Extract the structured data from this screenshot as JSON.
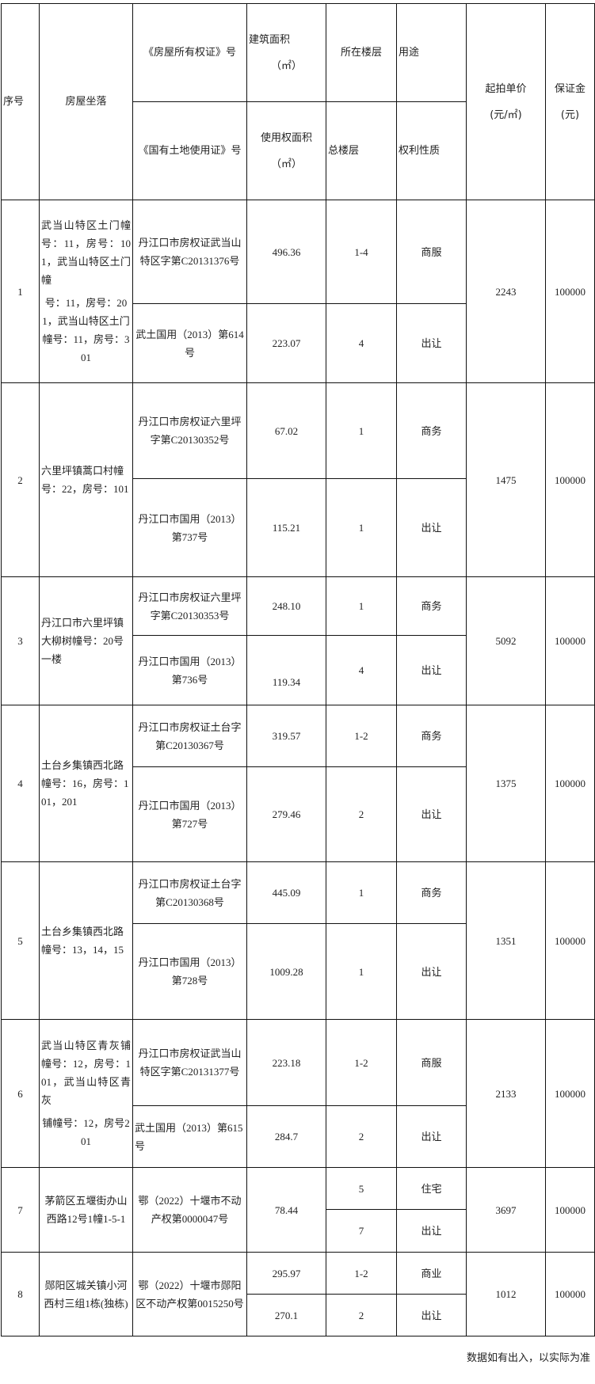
{
  "header": {
    "seq": "序号",
    "location": "房屋坐落",
    "house_cert": "《房屋所有权证》号",
    "land_cert": "《国有土地使用证》号",
    "building_area": "建筑面积",
    "building_area_unit": "（㎡）",
    "use_area": "使用权面积",
    "use_area_unit": "（㎡）",
    "floor": "所在楼层",
    "total_floors": "总楼层",
    "usage": "用途",
    "right_nature": "权利性质",
    "unit_price": "起拍单价",
    "unit_price_unit": "(元/㎡)",
    "deposit": "保证金",
    "deposit_unit": "(元)"
  },
  "rows": [
    {
      "seq": "1",
      "location_a": "武当山特区土门幢号：11，房号：101，武当山特区土门幢",
      "location_b": "号：11，房号：201，武当山特区土门幢号：11，房号：301",
      "house_cert": "丹江口市房权证武当山特区字第C20131376号",
      "land_cert": "武土国用（2013）第614号",
      "area1": "496.36",
      "area2": "223.07",
      "floor1": "1-4",
      "floor2": "4",
      "use1": "商服",
      "use2": "出让",
      "price": "2243",
      "deposit": "100000"
    },
    {
      "seq": "2",
      "location_a": "六里坪镇蒿口村幢号：22，房号：101",
      "house_cert": "丹江口市房权证六里坪字第C20130352号",
      "land_cert": "丹江口市国用（2013）第737号",
      "area1": "67.02",
      "area2": "115.21",
      "floor1": "1",
      "floor2": "1",
      "use1": "商务",
      "use2": "出让",
      "price": "1475",
      "deposit": "100000"
    },
    {
      "seq": "3",
      "location_a": "丹江口市六里坪镇大柳树幢号：20号一楼",
      "house_cert": "丹江口市房权证六里坪字第C20130353号",
      "land_cert": "丹江口市国用（2013）第736号",
      "area1": "248.10",
      "area2": "119.34",
      "floor1": "1",
      "floor2": "4",
      "use1": "商务",
      "use2": "出让",
      "price": "5092",
      "deposit": "100000"
    },
    {
      "seq": "4",
      "location_a": "土台乡集镇西北路幢号：16，房号：101，201",
      "house_cert": "丹江口市房权证土台字第C20130367号",
      "land_cert": "丹江口市国用（2013）第727号",
      "area1": "319.57",
      "area2": "279.46",
      "floor1": "1-2",
      "floor2": "2",
      "use1": "商务",
      "use2": "出让",
      "price": "1375",
      "deposit": "100000"
    },
    {
      "seq": "5",
      "location_a": "土台乡集镇西北路幢号：13，14，15",
      "house_cert": "丹江口市房权证土台字第C20130368号",
      "land_cert": "丹江口市国用（2013）第728号",
      "area1": "445.09",
      "area2": "1009.28",
      "floor1": "1",
      "floor2": "1",
      "use1": "商务",
      "use2": "出让",
      "price": "1351",
      "deposit": "100000"
    },
    {
      "seq": "6",
      "location_a": "武当山特区青灰铺幢号：12，房号：101，武当山特区青灰",
      "location_b": "铺幢号：12，房号201",
      "house_cert": "丹江口市房权证武当山特区字第C20131377号",
      "land_cert": "武土国用（2013）第615号",
      "area1": "223.18",
      "area2": "284.7",
      "floor1": "1-2",
      "floor2": "2",
      "use1": "商服",
      "use2": "出让",
      "price": "2133",
      "deposit": "100000"
    },
    {
      "seq": "7",
      "location_a": "茅箭区五堰街办山西路12号1幢1-5-1",
      "cert": "鄂（2022）十堰市不动产权第0000047号",
      "area": "78.44",
      "floor1": "5",
      "floor2": "7",
      "use1": "住宅",
      "use2": "出让",
      "price": "3697",
      "deposit": "100000"
    },
    {
      "seq": "8",
      "location_a": "郧阳区城关镇小河西村三组1栋(独栋)",
      "cert": "鄂（2022）十堰市郧阳区不动产权第0015250号",
      "area1": "295.97",
      "area2": "270.1",
      "floor1": "1-2",
      "floor2": "2",
      "use1": "商业",
      "use2": "出让",
      "price": "1012",
      "deposit": "100000"
    }
  ],
  "footer": "数据如有出入，以实际为准"
}
